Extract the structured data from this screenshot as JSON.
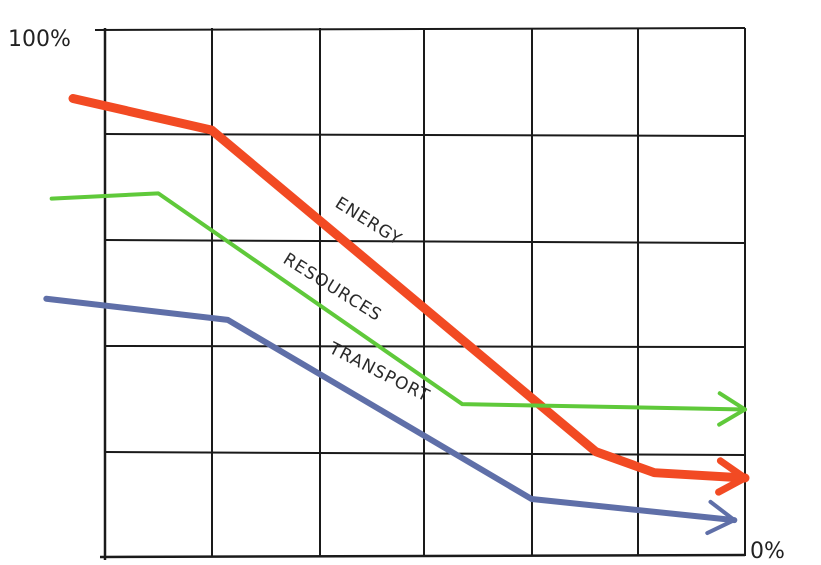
{
  "chart_data": {
    "type": "line",
    "title": "",
    "xlabel": "",
    "ylabel": "",
    "y_top_label": "100%",
    "y_bottom_label": "0%",
    "ylim": [
      0,
      100
    ],
    "xlim": [
      0,
      6
    ],
    "grid": true,
    "legend": "none",
    "series": [
      {
        "name": "ENERGY",
        "color": "#f24a23",
        "points": [
          [
            -0.3,
            87
          ],
          [
            1.0,
            81
          ],
          [
            4.6,
            20
          ],
          [
            5.15,
            16
          ],
          [
            6.0,
            15
          ]
        ]
      },
      {
        "name": "RESOURCES",
        "color": "#5fc93a",
        "points": [
          [
            -0.5,
            68
          ],
          [
            0.5,
            69
          ],
          [
            3.35,
            29
          ],
          [
            6.0,
            28
          ]
        ]
      },
      {
        "name": "TRANSPORT",
        "color": "#5f6fa8",
        "points": [
          [
            -0.55,
            49
          ],
          [
            1.15,
            45
          ],
          [
            4.0,
            11
          ],
          [
            5.9,
            7
          ]
        ]
      }
    ]
  }
}
